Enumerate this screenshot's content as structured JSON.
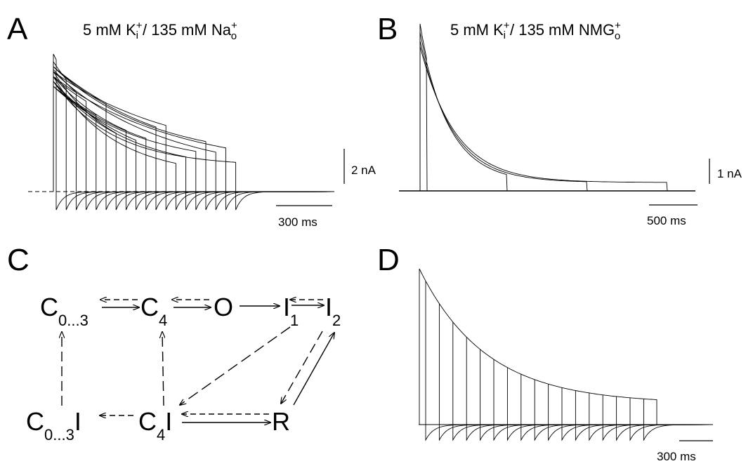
{
  "panels": {
    "A": {
      "letter": "A",
      "title": {
        "main": "5 mM K",
        "sup1": "+",
        "sub1": "i",
        "rest": " / 135 mM Na",
        "sup2": "+",
        "sub2": "o"
      },
      "scale_y_label": "2 nA",
      "scale_x_label": "300 ms",
      "trace_count": 19
    },
    "B": {
      "letter": "B",
      "title": {
        "main": "5 mM K",
        "sup1": "+",
        "sub1": "i",
        "rest": " / 135 mM NMG",
        "sup2": "+",
        "sub2": "o"
      },
      "scale_y_label": "1 nA",
      "scale_x_label": "500 ms",
      "trace_count": 4
    },
    "C": {
      "letter": "C",
      "states": {
        "c03": {
          "main": "C",
          "sub": "0...3"
        },
        "c4": {
          "main": "C",
          "sub": "4"
        },
        "o": {
          "main": "O",
          "sub": ""
        },
        "i1": {
          "main": "I",
          "sub": "1"
        },
        "i2": {
          "main": "I",
          "sub": "2"
        },
        "c03i": {
          "main": "C",
          "sub": "0...3",
          "suffix": "I"
        },
        "c4i": {
          "main": "C",
          "sub": "4",
          "suffix": "I"
        },
        "r": {
          "main": "R",
          "sub": ""
        }
      }
    },
    "D": {
      "letter": "D",
      "scale_x_label": "300 ms",
      "trace_count": 17
    }
  }
}
